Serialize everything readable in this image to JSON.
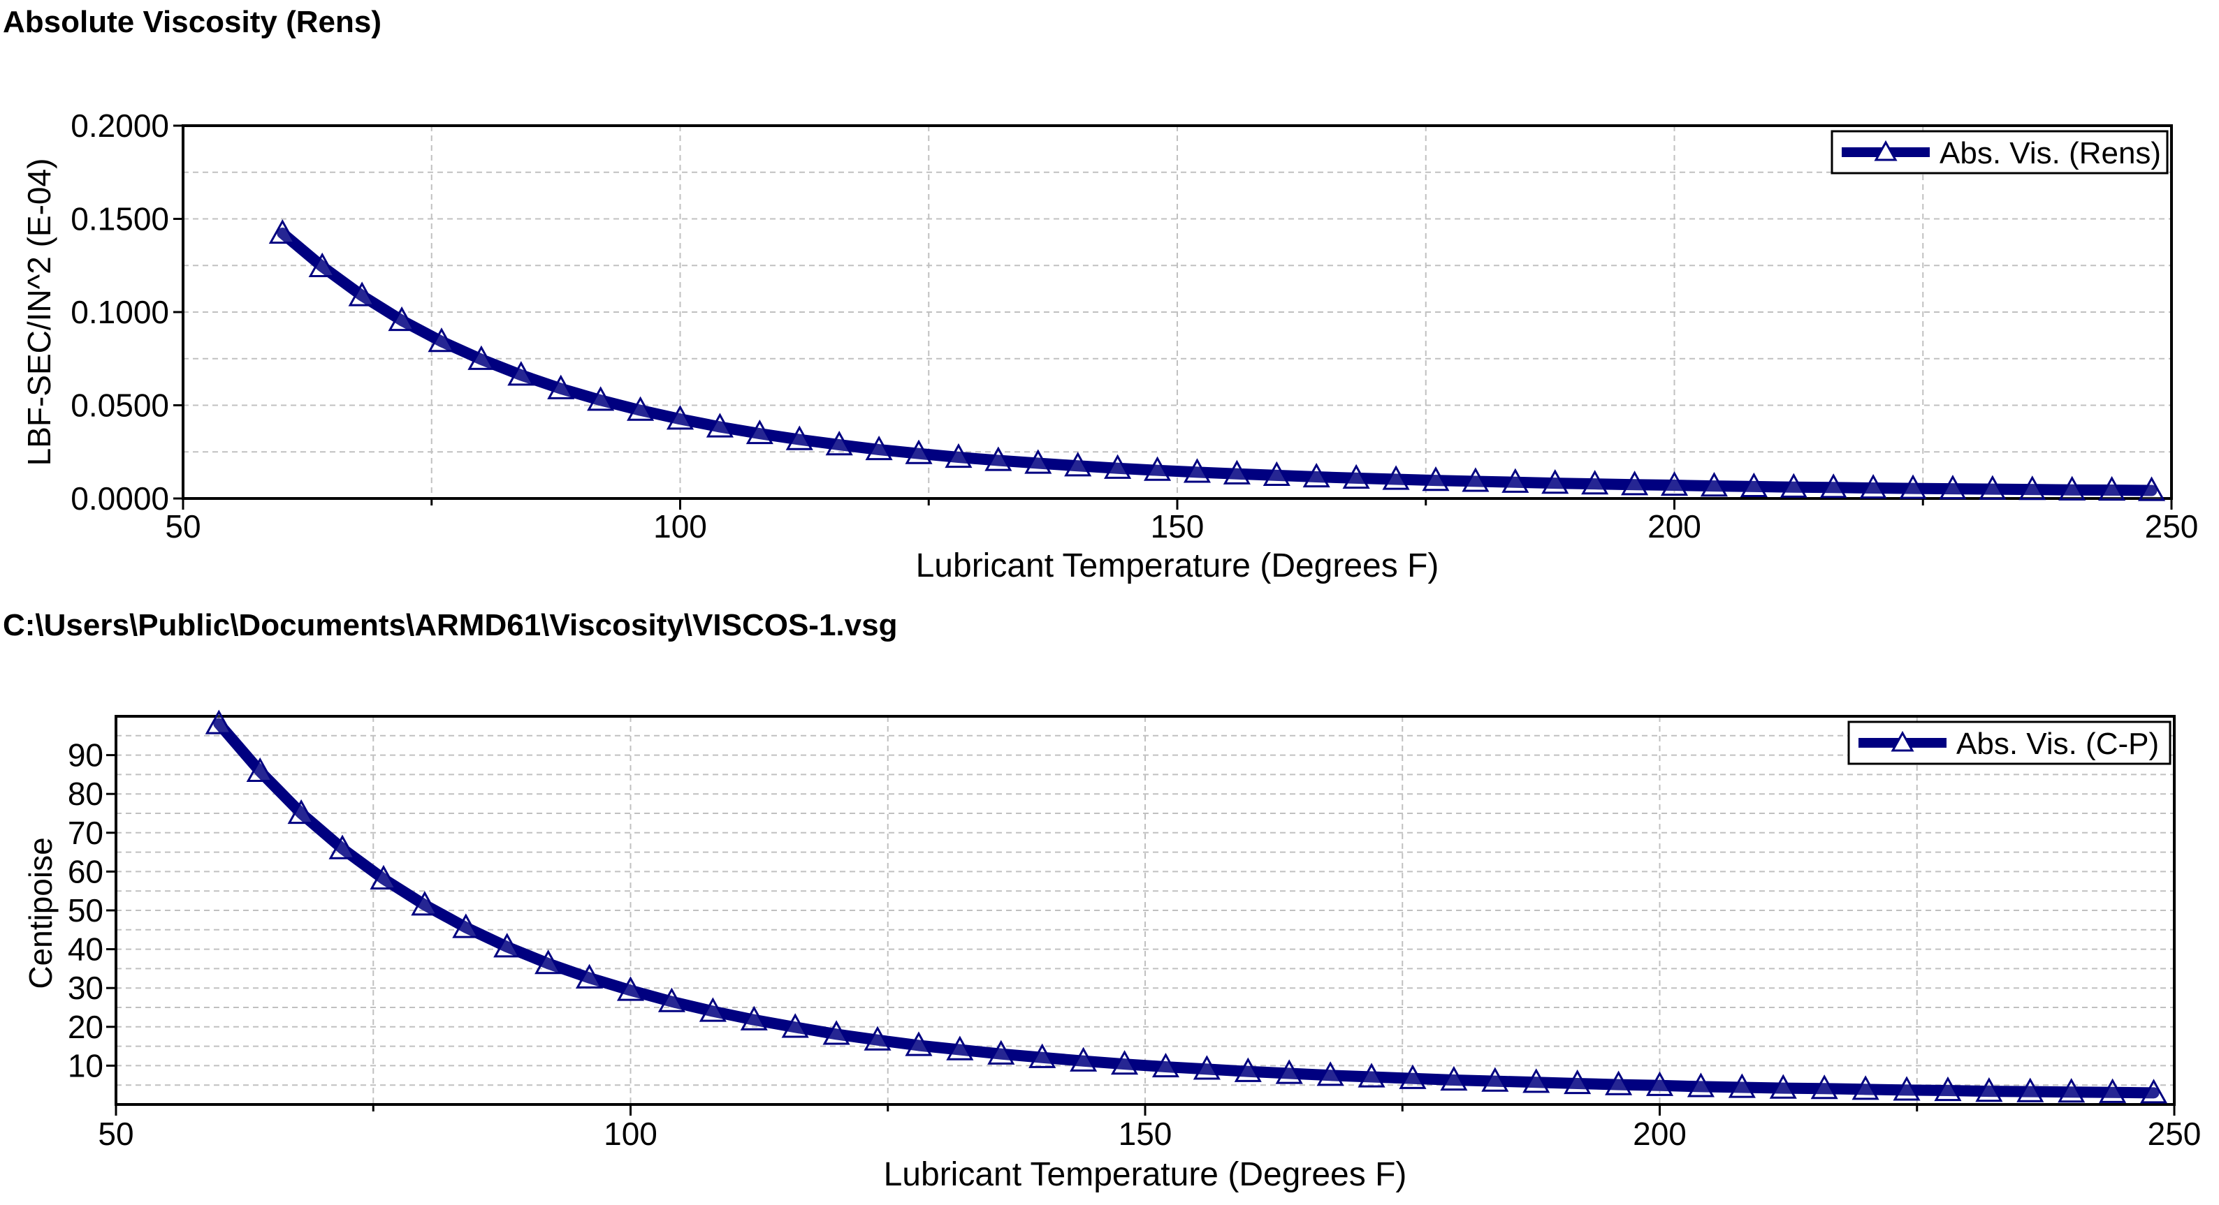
{
  "header": {
    "title": "Absolute Viscosity (Rens)",
    "file_path": "C:\\Users\\Public\\Documents\\ARMD61\\Viscosity\\VISCOS-1.vsg"
  },
  "colors": {
    "series": "#000080",
    "grid": "#c0c0c0",
    "frame": "#000000"
  },
  "chart_data": [
    {
      "type": "line",
      "xlabel": "Lubricant Temperature (Degrees F)",
      "ylabel": "LBF-SEC/IN^2 (E-04)",
      "xlim": [
        50,
        250
      ],
      "ylim": [
        0,
        0.2
      ],
      "x_ticks": [
        "50",
        "100",
        "150",
        "200",
        "250"
      ],
      "y_ticks": [
        "0.0000",
        "0.0500",
        "0.1000",
        "0.1500",
        "0.2000"
      ],
      "grid": true,
      "legend_position": "top-right",
      "marker": "triangle",
      "series": [
        {
          "name": "Abs. Vis. (Rens)",
          "x": [
            60,
            64,
            68,
            72,
            76,
            80,
            84,
            88,
            92,
            96,
            100,
            104,
            108,
            112,
            116,
            120,
            124,
            128,
            132,
            136,
            140,
            144,
            148,
            152,
            156,
            160,
            164,
            168,
            172,
            176,
            180,
            184,
            188,
            192,
            196,
            200,
            204,
            208,
            212,
            216,
            220,
            224,
            228,
            232,
            236,
            240,
            244,
            248
          ],
          "y": [
            0.1423,
            0.1244,
            0.1088,
            0.0955,
            0.0842,
            0.0746,
            0.0662,
            0.0589,
            0.0527,
            0.0473,
            0.0426,
            0.0384,
            0.0348,
            0.0316,
            0.0288,
            0.0262,
            0.0241,
            0.0221,
            0.0204,
            0.0189,
            0.0175,
            0.0162,
            0.0151,
            0.0141,
            0.0132,
            0.0124,
            0.0116,
            0.0109,
            0.0103,
            0.0097,
            0.0092,
            0.0087,
            0.0082,
            0.0078,
            0.0074,
            0.0071,
            0.0067,
            0.0064,
            0.0061,
            0.0059,
            0.0056,
            0.0054,
            0.0052,
            0.005,
            0.0048,
            0.0046,
            0.0045,
            0.0043
          ]
        }
      ]
    },
    {
      "type": "line",
      "xlabel": "Lubricant Temperature (Degrees F)",
      "ylabel": "Centipoise",
      "xlim": [
        50,
        250
      ],
      "ylim": [
        0,
        100
      ],
      "x_ticks": [
        "50",
        "100",
        "150",
        "200",
        "250"
      ],
      "y_ticks": [
        "10",
        "20",
        "30",
        "40",
        "50",
        "60",
        "70",
        "80",
        "90"
      ],
      "grid": true,
      "legend_position": "top-right",
      "marker": "triangle",
      "series": [
        {
          "name": "Abs. Vis. (C-P)",
          "x": [
            60,
            64,
            68,
            72,
            76,
            80,
            84,
            88,
            92,
            96,
            100,
            104,
            108,
            112,
            116,
            120,
            124,
            128,
            132,
            136,
            140,
            144,
            148,
            152,
            156,
            160,
            164,
            168,
            172,
            176,
            180,
            184,
            188,
            192,
            196,
            200,
            204,
            208,
            212,
            216,
            220,
            224,
            228,
            232,
            236,
            240,
            244,
            248
          ],
          "y": [
            98.1,
            85.8,
            75.0,
            65.9,
            58.1,
            51.4,
            45.6,
            40.6,
            36.3,
            32.6,
            29.4,
            26.5,
            24.0,
            21.8,
            19.9,
            18.1,
            16.6,
            15.2,
            14.1,
            13.0,
            12.1,
            11.2,
            10.4,
            9.7,
            9.1,
            8.5,
            8.0,
            7.5,
            7.1,
            6.7,
            6.3,
            6.0,
            5.7,
            5.4,
            5.1,
            4.9,
            4.6,
            4.4,
            4.2,
            4.1,
            3.9,
            3.7,
            3.6,
            3.4,
            3.3,
            3.2,
            3.1,
            3.0
          ]
        }
      ]
    }
  ]
}
